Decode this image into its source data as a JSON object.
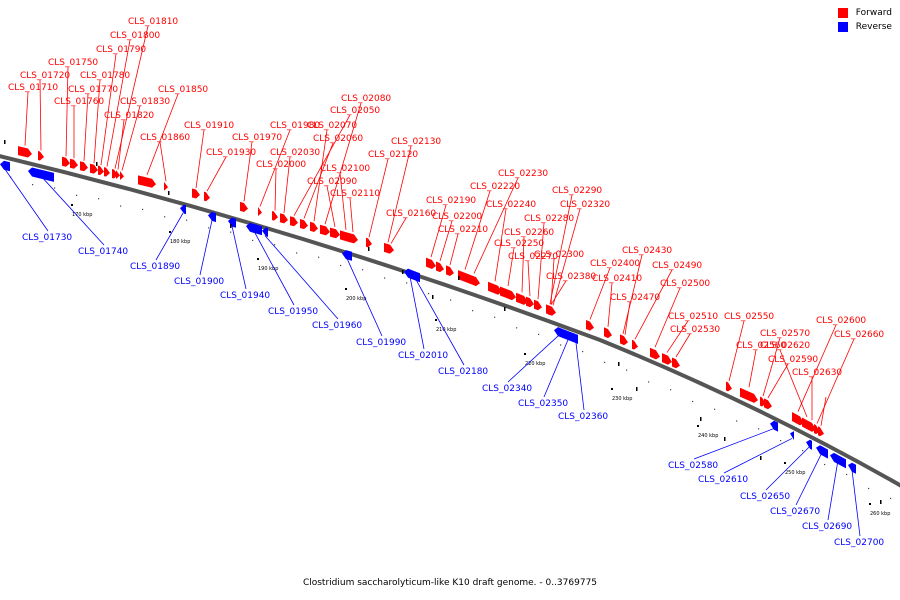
{
  "caption": "Clostridium saccharolyticum-like K10 draft genome. - 0..3769775",
  "colors": {
    "forward": "#ff0000",
    "reverse": "#0000ff",
    "backbone": "#808080",
    "ticks": "#000000"
  },
  "legend": [
    {
      "label": "Forward",
      "color": "#ff0000"
    },
    {
      "label": "Reverse",
      "color": "#0000ff"
    }
  ],
  "axis_labels": [
    "170 kbp",
    "180 kbp",
    "190 kbp",
    "200 kbp",
    "210 kbp",
    "220 kbp",
    "230 kbp",
    "240 kbp",
    "250 kbp",
    "260 kbp"
  ],
  "forward_genes": [
    "CLS_01710",
    "CLS_01720",
    "CLS_01750",
    "CLS_01760",
    "CLS_01770",
    "CLS_01780",
    "CLS_01790",
    "CLS_01800",
    "CLS_01810",
    "CLS_01820",
    "CLS_01830",
    "CLS_01850",
    "CLS_01860",
    "CLS_01910",
    "CLS_01930",
    "CLS_01970",
    "CLS_01980",
    "CLS_02000",
    "CLS_02030",
    "CLS_02050",
    "CLS_02060",
    "CLS_02070",
    "CLS_02080",
    "CLS_02090",
    "CLS_02100",
    "CLS_02110",
    "CLS_02120",
    "CLS_02130",
    "CLS_02160",
    "CLS_02190",
    "CLS_02200",
    "CLS_02210",
    "CLS_02220",
    "CLS_02230",
    "CLS_02240",
    "CLS_02250",
    "CLS_02260",
    "CLS_02270",
    "CLS_02280",
    "CLS_02290",
    "CLS_02300",
    "CLS_02320",
    "CLS_02380",
    "CLS_02400",
    "CLS_02410",
    "CLS_02430",
    "CLS_02470",
    "CLS_02490",
    "CLS_02500",
    "CLS_02510",
    "CLS_02530",
    "CLS_02550",
    "CLS_02560",
    "CLS_02570",
    "CLS_02590",
    "CLS_02600",
    "CLS_02620",
    "CLS_02630",
    "CLS_02660"
  ],
  "reverse_genes": [
    "CLS_01730",
    "CLS_01740",
    "CLS_01890",
    "CLS_01900",
    "CLS_01940",
    "CLS_01950",
    "CLS_01960",
    "CLS_01990",
    "CLS_02010",
    "CLS_02180",
    "CLS_02340",
    "CLS_02350",
    "CLS_02360",
    "CLS_02580",
    "CLS_02610",
    "CLS_02650",
    "CLS_02670",
    "CLS_02690",
    "CLS_02700"
  ]
}
